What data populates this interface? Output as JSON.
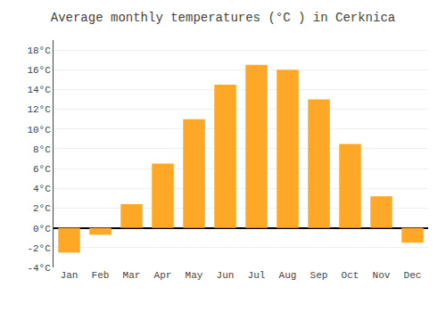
{
  "chart_data": {
    "type": "bar",
    "title": "Average monthly temperatures (°C ) in Cerknica",
    "categories": [
      "Jan",
      "Feb",
      "Mar",
      "Apr",
      "May",
      "Jun",
      "Jul",
      "Aug",
      "Sep",
      "Oct",
      "Nov",
      "Dec"
    ],
    "values": [
      -2.5,
      -0.7,
      2.4,
      6.5,
      11.0,
      14.5,
      16.5,
      16.0,
      13.0,
      8.5,
      3.2,
      -1.5
    ],
    "color": "#FFA726",
    "ylim": [
      -4,
      19
    ],
    "yticks": [
      {
        "value": -4,
        "label": "-4°C"
      },
      {
        "value": -2,
        "label": "-2°C"
      },
      {
        "value": 0,
        "label": "0°C"
      },
      {
        "value": 2,
        "label": "2°C"
      },
      {
        "value": 4,
        "label": "4°C"
      },
      {
        "value": 6,
        "label": "6°C"
      },
      {
        "value": 8,
        "label": "8°C"
      },
      {
        "value": 10,
        "label": "10°C"
      },
      {
        "value": 12,
        "label": "12°C"
      },
      {
        "value": 14,
        "label": "14°C"
      },
      {
        "value": 16,
        "label": "16°C"
      },
      {
        "value": 18,
        "label": "18°C"
      }
    ],
    "grid": true
  }
}
